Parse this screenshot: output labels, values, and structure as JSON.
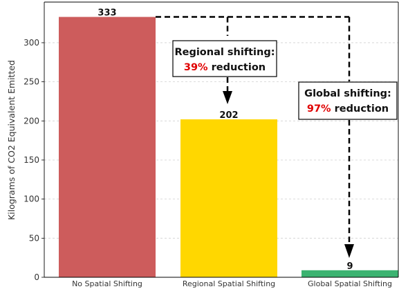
{
  "chart_data": {
    "type": "bar",
    "categories": [
      "No Spatial Shifting",
      "Regional Spatial Shifting",
      "Global Spatial Shifting"
    ],
    "values": [
      333,
      202,
      9
    ],
    "data_labels": [
      "333",
      "202",
      "9"
    ],
    "ylabel": "Kilograms of CO2 Equivalent Emitted",
    "xlabel": "",
    "ylim": [
      0,
      350
    ],
    "yticks": [
      0,
      50,
      100,
      150,
      200,
      250,
      300
    ],
    "grid": "y, dashed",
    "bar_colors": [
      "#cd5c5c",
      "#ffd700",
      "#3cb371"
    ],
    "annotations": [
      {
        "line1": "Regional shifting:",
        "percent": "39%",
        "rest": " reduction",
        "from_category": 0,
        "to_category": 1
      },
      {
        "line1": "Global shifting:",
        "percent": "97%",
        "rest": " reduction",
        "from_category": 0,
        "to_category": 2
      }
    ],
    "annotation_colors": {
      "percent": "#e00000",
      "text": "#111111",
      "arrow": "#000000"
    }
  }
}
